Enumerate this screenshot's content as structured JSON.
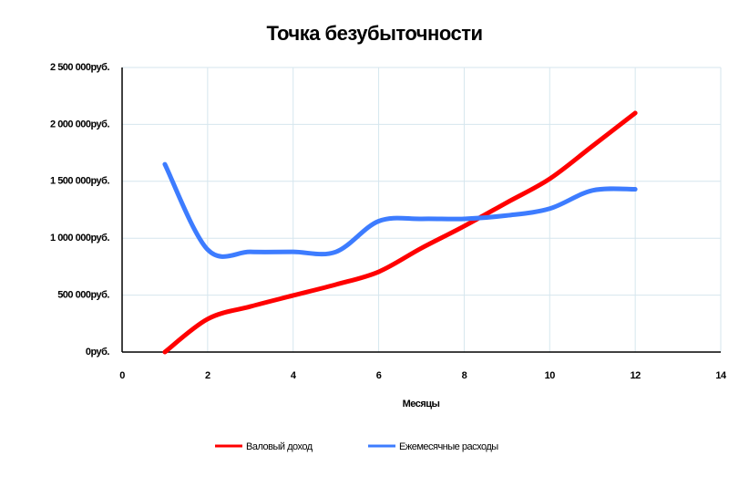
{
  "chart_data": {
    "type": "line",
    "title": "Точка безубыточности",
    "xlabel": "Месяцы",
    "x": [
      1,
      2,
      3,
      4,
      5,
      6,
      7,
      8,
      9,
      10,
      11,
      12
    ],
    "series": [
      {
        "name": "Валовый доход",
        "color": "#ff0000",
        "values": [
          0,
          290000,
          400000,
          497000,
          593000,
          705000,
          913000,
          1106000,
          1314000,
          1522000,
          1810000,
          2100000
        ]
      },
      {
        "name": "Ежемесячные расходы",
        "color": "#3d7cff",
        "values": [
          1650000,
          900000,
          880000,
          880000,
          880000,
          1150000,
          1170000,
          1170000,
          1200000,
          1260000,
          1420000,
          1430000
        ]
      }
    ],
    "xlim": [
      0,
      14
    ],
    "xticks": [
      0,
      2,
      4,
      6,
      8,
      10,
      12,
      14
    ],
    "ylim": [
      0,
      2500000
    ],
    "yticks": [
      {
        "value": 0,
        "label": "0руб."
      },
      {
        "value": 500000,
        "label": "500 000руб."
      },
      {
        "value": 1000000,
        "label": "1 000 000руб."
      },
      {
        "value": 1500000,
        "label": "1 500 000руб."
      },
      {
        "value": 2000000,
        "label": "2 000 000руб."
      },
      {
        "value": 2500000,
        "label": "2 500 000руб."
      }
    ],
    "grid": true,
    "legend": "bottom"
  }
}
